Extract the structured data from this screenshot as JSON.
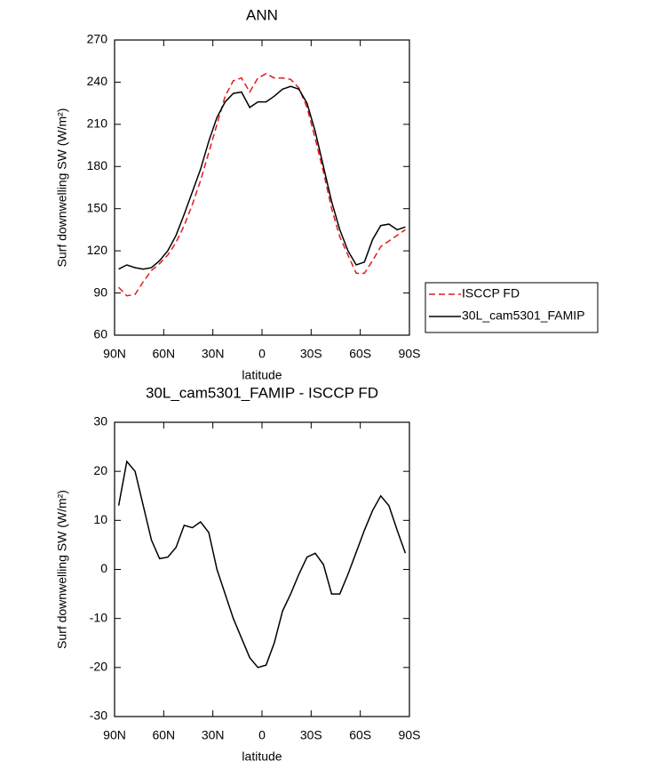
{
  "chart_data": [
    {
      "type": "line",
      "title": "ANN",
      "xlabel": "latitude",
      "ylabel": "Surf downwelling SW (W/m²)",
      "x": [
        87.5,
        82.5,
        77.5,
        72.5,
        67.5,
        62.5,
        57.5,
        52.5,
        47.5,
        42.5,
        37.5,
        32.5,
        27.5,
        22.5,
        17.5,
        12.5,
        7.5,
        2.5,
        -2.5,
        -7.5,
        -12.5,
        -17.5,
        -22.5,
        -27.5,
        -32.5,
        -37.5,
        -42.5,
        -47.5,
        -52.5,
        -57.5,
        -62.5,
        -67.5,
        -72.5,
        -77.5,
        -82.5,
        -87.5
      ],
      "series": [
        {
          "name": "ISCCP FD",
          "color": "#e41a1c",
          "dash": "dashed",
          "values": [
            94,
            88,
            89,
            98,
            106,
            111,
            117,
            126,
            138,
            153,
            170,
            190,
            210,
            230,
            241,
            243,
            233,
            243,
            246,
            243,
            243,
            242,
            236,
            222,
            200,
            176,
            150,
            130,
            117,
            104,
            104,
            113,
            123,
            127,
            131,
            135
          ]
        },
        {
          "name": "30L_cam5301_FAMIP",
          "color": "#000000",
          "dash": "solid",
          "values": [
            107,
            110,
            108,
            107,
            108,
            113,
            120,
            131,
            146,
            162,
            178,
            198,
            215,
            226,
            232,
            233,
            222,
            226,
            226,
            230,
            235,
            237,
            235,
            225,
            205,
            180,
            155,
            135,
            120,
            110,
            112,
            128,
            138,
            139,
            135,
            137
          ]
        }
      ],
      "xlim": [
        90,
        -90
      ],
      "xticks": [
        {
          "value": 90,
          "label": "90N"
        },
        {
          "value": 60,
          "label": "60N"
        },
        {
          "value": 30,
          "label": "30N"
        },
        0,
        {
          "value": -30,
          "label": "30S"
        },
        {
          "value": -60,
          "label": "60S"
        },
        {
          "value": -90,
          "label": "90S"
        }
      ],
      "ylim": [
        60,
        270
      ],
      "yticks": [
        60,
        90,
        120,
        150,
        180,
        210,
        240,
        270
      ],
      "legend": "right"
    },
    {
      "type": "line",
      "title": "30L_cam5301_FAMIP - ISCCP FD",
      "xlabel": "latitude",
      "ylabel": "Surf downwelling SW (W/m²)",
      "x": [
        87.5,
        82.5,
        77.5,
        72.5,
        67.5,
        62.5,
        57.5,
        52.5,
        47.5,
        42.5,
        37.5,
        32.5,
        27.5,
        22.5,
        17.5,
        12.5,
        7.5,
        2.5,
        -2.5,
        -7.5,
        -12.5,
        -17.5,
        -22.5,
        -27.5,
        -32.5,
        -37.5,
        -42.5,
        -47.5,
        -52.5,
        -57.5,
        -62.5,
        -67.5,
        -72.5,
        -77.5,
        -82.5,
        -87.5
      ],
      "series": [
        {
          "color": "#000000",
          "dash": "solid",
          "values": [
            13,
            22,
            20,
            13,
            6,
            2.2,
            2.5,
            4.5,
            9,
            8.5,
            9.7,
            7.5,
            0,
            -5,
            -10,
            -14,
            -18,
            -20,
            -19.5,
            -15,
            -8.5,
            -5,
            -1,
            2.5,
            3.3,
            1,
            -5,
            -5,
            -1,
            3.5,
            8,
            12,
            15,
            13,
            8,
            3.3
          ]
        }
      ],
      "xlim": [
        90,
        -90
      ],
      "xticks": [
        {
          "value": 90,
          "label": "90N"
        },
        {
          "value": 60,
          "label": "60N"
        },
        {
          "value": 30,
          "label": "30N"
        },
        0,
        {
          "value": -30,
          "label": "30S"
        },
        {
          "value": -60,
          "label": "60S"
        },
        {
          "value": -90,
          "label": "90S"
        }
      ],
      "ylim": [
        -30,
        30
      ],
      "yticks": [
        -30,
        -20,
        -10,
        0,
        10,
        20,
        30
      ]
    }
  ]
}
